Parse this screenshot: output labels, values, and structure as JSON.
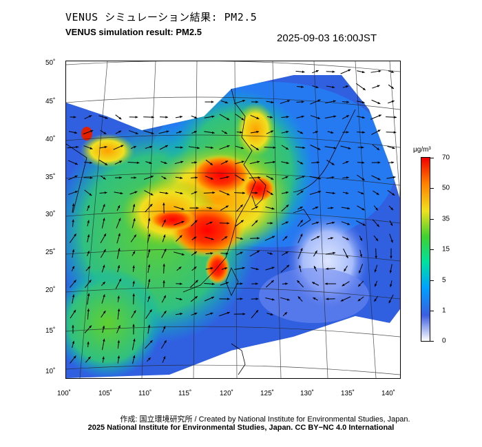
{
  "title_jp": "VENUS シミュレーション結果: PM2.5",
  "title_en": "VENUS simulation result: PM2.5",
  "timestamp": "2025-09-03 16:00JST",
  "map": {
    "lat_labels": [
      "50˚",
      "45˚",
      "40˚",
      "35˚",
      "30˚",
      "25˚",
      "20˚",
      "15˚",
      "10˚"
    ],
    "lon_labels": [
      "100˚",
      "105˚",
      "110˚",
      "115˚",
      "120˚",
      "125˚",
      "130˚",
      "135˚",
      "140˚"
    ]
  },
  "colorbar": {
    "unit": "μg/m³",
    "ticks": [
      "70",
      "50",
      "35",
      "15",
      "5",
      "1",
      "0"
    ],
    "colors": [
      "#ffffff",
      "#3c5ee0",
      "#00a0ff",
      "#00e0a0",
      "#40d030",
      "#f0e020",
      "#ff8000",
      "#f00000"
    ]
  },
  "credit_line1": "作成: 国立環境研究所 / Created by National Institute for Environmental Studies, Japan.",
  "credit_line2": "2025 National Institute for Environmental Studies, Japan. CC BY−NC 4.0 International"
}
